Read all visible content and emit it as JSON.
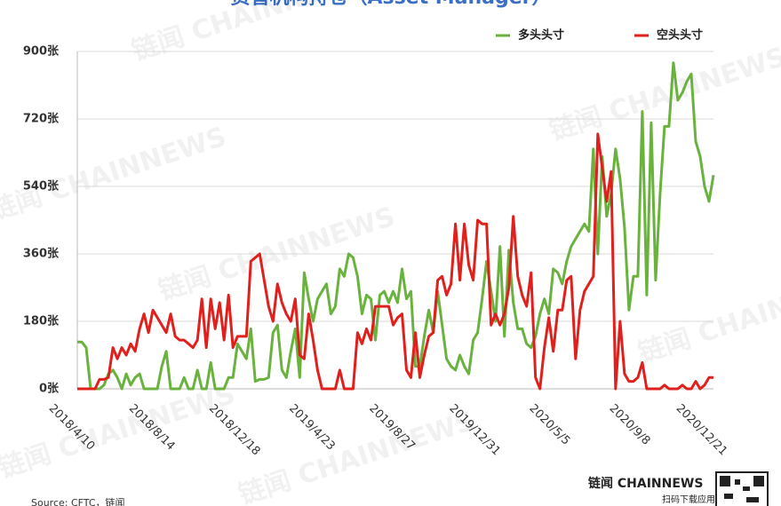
{
  "chart_data": {
    "type": "line",
    "title": "资管机构持仓（Asset Manager）",
    "source": "Source: CFTC，链闻",
    "watermark": "链闻 CHAINNEWS",
    "logo": "链闻 CHAINNEWS",
    "logo_caption": "扫码下载应用",
    "legend": "top-right",
    "grid": true,
    "ylim": [
      0,
      900
    ],
    "yticks": [
      {
        "value": 0,
        "label": "0张"
      },
      {
        "value": 180,
        "label": "180张"
      },
      {
        "value": 360,
        "label": "360张"
      },
      {
        "value": 540,
        "label": "540张"
      },
      {
        "value": 720,
        "label": "720张"
      },
      {
        "value": 900,
        "label": "900张"
      }
    ],
    "categories": [
      "2018/4/10",
      null,
      null,
      null,
      null,
      null,
      null,
      null,
      null,
      null,
      null,
      null,
      null,
      null,
      null,
      null,
      null,
      null,
      "2018/8/14",
      null,
      null,
      null,
      null,
      null,
      null,
      null,
      null,
      null,
      null,
      null,
      null,
      null,
      null,
      null,
      null,
      null,
      "2018/12/18",
      null,
      null,
      null,
      null,
      null,
      null,
      null,
      null,
      null,
      null,
      null,
      null,
      null,
      null,
      null,
      null,
      null,
      "2019/4/23",
      null,
      null,
      null,
      null,
      null,
      null,
      null,
      null,
      null,
      null,
      null,
      null,
      null,
      null,
      null,
      null,
      null,
      "2019/8/27",
      null,
      null,
      null,
      null,
      null,
      null,
      null,
      null,
      null,
      null,
      null,
      null,
      null,
      null,
      null,
      null,
      null,
      "2019/12/31",
      null,
      null,
      null,
      null,
      null,
      null,
      null,
      null,
      null,
      null,
      null,
      null,
      null,
      null,
      null,
      null,
      null,
      "2020/5/5",
      null,
      null,
      null,
      null,
      null,
      null,
      null,
      null,
      null,
      null,
      null,
      null,
      null,
      null,
      null,
      null,
      null,
      "2020/9/8",
      null,
      null,
      null,
      null,
      null,
      null,
      null,
      null,
      null,
      null,
      null,
      null,
      null,
      null,
      "2020/12/21",
      null,
      null
    ],
    "series": [
      {
        "name": "多头头寸",
        "color": "#6ab23e",
        "values": [
          125,
          125,
          110,
          0,
          0,
          0,
          10,
          40,
          50,
          30,
          0,
          40,
          10,
          30,
          40,
          0,
          0,
          0,
          0,
          60,
          100,
          0,
          0,
          0,
          30,
          0,
          0,
          50,
          0,
          0,
          70,
          0,
          0,
          0,
          30,
          30,
          120,
          100,
          80,
          160,
          20,
          25,
          25,
          30,
          150,
          170,
          50,
          30,
          100,
          160,
          30,
          310,
          240,
          180,
          240,
          260,
          280,
          200,
          220,
          320,
          300,
          360,
          350,
          300,
          200,
          250,
          240,
          130,
          250,
          260,
          230,
          260,
          230,
          320,
          240,
          260,
          60,
          60,
          140,
          210,
          150,
          260,
          170,
          80,
          60,
          50,
          90,
          60,
          40,
          130,
          150,
          240,
          340,
          260,
          180,
          380,
          140,
          370,
          230,
          160,
          160,
          120,
          110,
          140,
          200,
          240,
          200,
          320,
          310,
          280,
          340,
          380,
          400,
          420,
          440,
          420,
          640,
          360,
          620,
          460,
          520,
          640,
          560,
          430,
          210,
          300,
          300,
          740,
          250,
          710,
          290,
          520,
          700,
          700,
          870,
          770,
          790,
          820,
          840,
          660,
          620,
          540,
          500,
          570
        ]
      },
      {
        "name": "空头头寸",
        "color": "#e0201c",
        "values": [
          0,
          0,
          0,
          0,
          0,
          25,
          25,
          30,
          110,
          80,
          110,
          90,
          120,
          100,
          160,
          200,
          150,
          210,
          190,
          170,
          150,
          200,
          140,
          130,
          130,
          120,
          110,
          130,
          240,
          110,
          240,
          160,
          230,
          130,
          250,
          110,
          140,
          140,
          140,
          340,
          350,
          360,
          290,
          220,
          180,
          280,
          230,
          200,
          180,
          240,
          90,
          80,
          200,
          130,
          50,
          0,
          0,
          0,
          0,
          50,
          0,
          0,
          0,
          150,
          120,
          160,
          130,
          220,
          220,
          220,
          220,
          170,
          190,
          200,
          50,
          30,
          150,
          30,
          90,
          140,
          150,
          290,
          300,
          250,
          280,
          440,
          290,
          440,
          330,
          290,
          450,
          440,
          440,
          170,
          200,
          170,
          200,
          270,
          460,
          300,
          250,
          220,
          310,
          30,
          0,
          110,
          190,
          100,
          210,
          210,
          290,
          300,
          80,
          210,
          260,
          280,
          300,
          680,
          590,
          500,
          580,
          0,
          180,
          40,
          20,
          20,
          30,
          70,
          0,
          0,
          0,
          0,
          10,
          0,
          0,
          0,
          10,
          0,
          0,
          20,
          0,
          10,
          30,
          30
        ]
      }
    ]
  }
}
